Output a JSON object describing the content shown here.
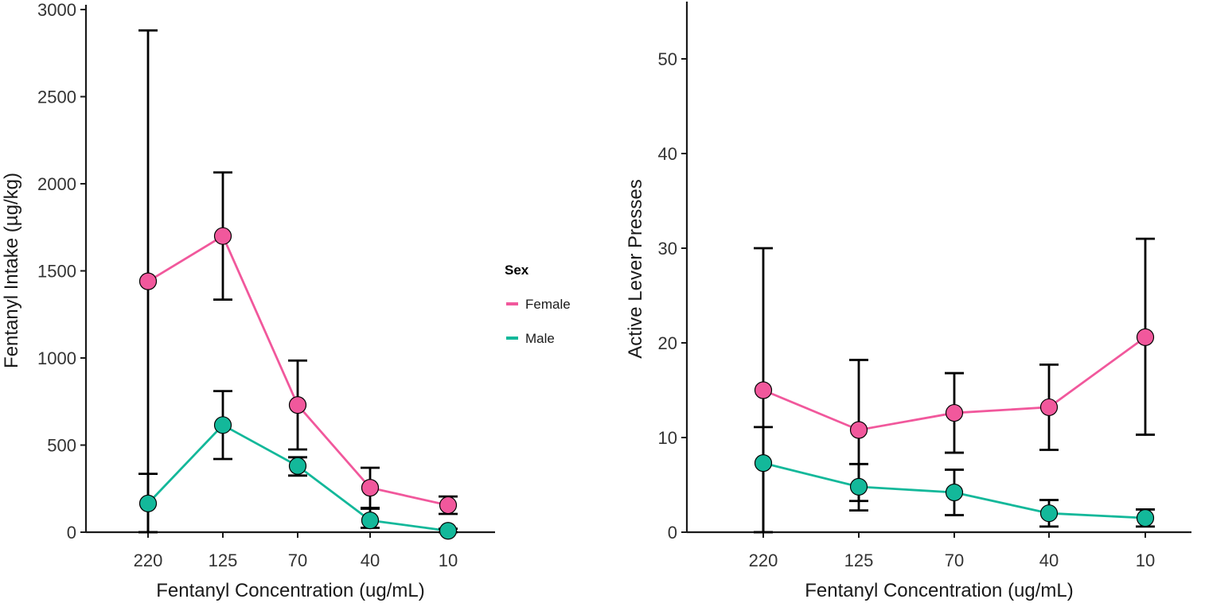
{
  "legend": {
    "title": "Sex",
    "entries": [
      {
        "label": "Female",
        "color": "#f1589c"
      },
      {
        "label": "Male",
        "color": "#13b89a"
      }
    ],
    "placement": "right of left panel"
  },
  "chart_data": [
    {
      "type": "line",
      "xlabel": "Fentanyl Concentration (ug/mL)",
      "ylabel": "Fentanyl Intake (µg/kg)",
      "categories": [
        "220",
        "125",
        "70",
        "40",
        "10"
      ],
      "ylim": [
        0,
        3000
      ],
      "yticks": [
        0,
        500,
        1000,
        1500,
        2000,
        2500,
        3000
      ],
      "grid": false,
      "series": [
        {
          "name": "Female",
          "color": "#f1589c",
          "values": [
            1440,
            1700,
            730,
            255,
            155
          ],
          "err_low": [
            0,
            1335,
            475,
            140,
            105
          ],
          "err_high": [
            2880,
            2065,
            985,
            370,
            205
          ]
        },
        {
          "name": "Male",
          "color": "#13b89a",
          "values": [
            165,
            615,
            380,
            68,
            8
          ],
          "err_low": [
            0,
            420,
            325,
            25,
            0
          ],
          "err_high": [
            335,
            810,
            430,
            135,
            20
          ]
        }
      ]
    },
    {
      "type": "line",
      "xlabel": "Fentanyl Concentration (ug/mL)",
      "ylabel": "Active Lever Presses",
      "categories": [
        "220",
        "125",
        "70",
        "40",
        "10"
      ],
      "ylim": [
        0,
        55
      ],
      "yticks": [
        0,
        10,
        20,
        30,
        40,
        50
      ],
      "grid": false,
      "series": [
        {
          "name": "Female",
          "color": "#f1589c",
          "values": [
            15.0,
            10.8,
            12.6,
            13.2,
            20.6
          ],
          "err_low": [
            0,
            3.3,
            8.4,
            8.7,
            10.3
          ],
          "err_high": [
            30.0,
            18.2,
            16.8,
            17.7,
            31.0
          ]
        },
        {
          "name": "Male",
          "color": "#13b89a",
          "values": [
            7.3,
            4.8,
            4.2,
            2.0,
            1.5
          ],
          "err_low": [
            0,
            2.3,
            1.8,
            0.6,
            0.6
          ],
          "err_high": [
            11.1,
            7.2,
            6.6,
            3.4,
            2.4
          ]
        }
      ]
    }
  ]
}
